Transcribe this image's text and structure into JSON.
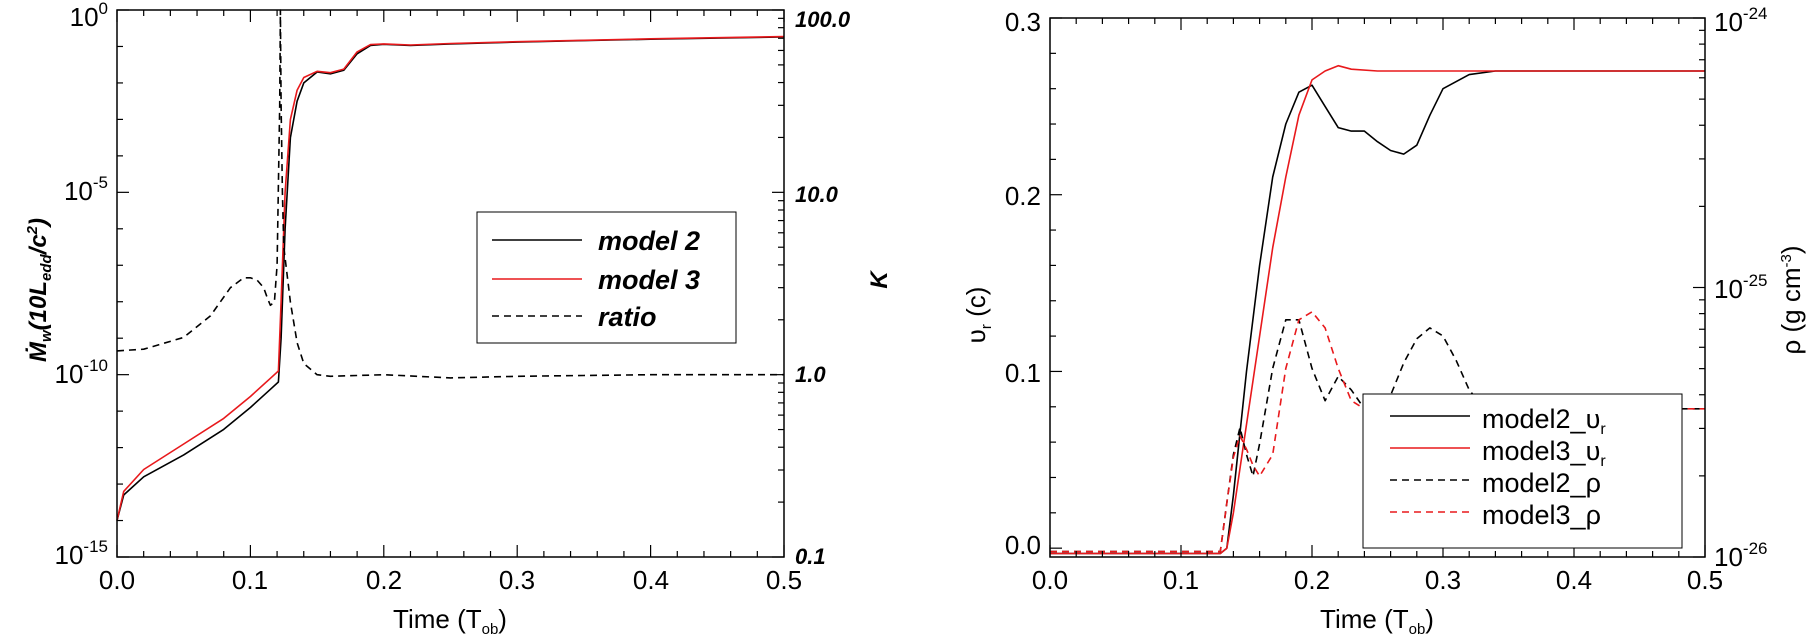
{
  "colors": {
    "black": "#000000",
    "red": "#e8191c",
    "axis": "#000000"
  },
  "chart_data": [
    {
      "type": "line",
      "title": "",
      "xlabel": "Time (T",
      "xlabel_sub": "ob",
      "xlabel_close": ")",
      "ylabel_left": {
        "main": "Ṁ",
        "sub1": "w",
        "mid": "(10L",
        "sub2": "edd",
        "end": "/c",
        "sup": "2",
        "close": ")"
      },
      "ylabel_right": "K",
      "xlim": [
        0,
        0.5
      ],
      "ylim_left_log10": [
        -15,
        0
      ],
      "ylim_right_log10": [
        -1,
        2
      ],
      "y_scale": "log",
      "x_ticks": [
        "0.0",
        "0.1",
        "0.2",
        "0.3",
        "0.4",
        "0.5"
      ],
      "y_ticks_left": [
        {
          "base": "10",
          "exp": "0"
        },
        {
          "base": "10",
          "exp": "-5"
        },
        {
          "base": "10",
          "exp": "-10"
        },
        {
          "base": "10",
          "exp": "-15"
        }
      ],
      "y_ticks_right": [
        "100.0",
        "10.0",
        "1.0",
        "0.1"
      ],
      "legend_position": "center-right",
      "series": [
        {
          "name": "model 2",
          "axis": "left",
          "style": "solid",
          "color": "#000000",
          "x": [
            0.0,
            0.005,
            0.02,
            0.05,
            0.08,
            0.1,
            0.115,
            0.121,
            0.123,
            0.126,
            0.13,
            0.135,
            0.14,
            0.15,
            0.16,
            0.17,
            0.18,
            0.19,
            0.2,
            0.22,
            0.25,
            0.3,
            0.35,
            0.4,
            0.45,
            0.5
          ],
          "log10_y": [
            -14,
            -13.3,
            -12.8,
            -12.2,
            -11.5,
            -10.9,
            -10.4,
            -10.2,
            -9.0,
            -6.0,
            -3.5,
            -2.5,
            -2.0,
            -1.7,
            -1.75,
            -1.65,
            -1.2,
            -0.97,
            -0.94,
            -0.97,
            -0.93,
            -0.88,
            -0.84,
            -0.8,
            -0.77,
            -0.74
          ]
        },
        {
          "name": "model 3",
          "axis": "left",
          "style": "solid",
          "color": "#e8191c",
          "x": [
            0.0,
            0.005,
            0.02,
            0.05,
            0.08,
            0.1,
            0.115,
            0.121,
            0.123,
            0.126,
            0.13,
            0.135,
            0.14,
            0.15,
            0.16,
            0.17,
            0.18,
            0.19,
            0.2,
            0.22,
            0.25,
            0.3,
            0.35,
            0.4,
            0.45,
            0.5
          ],
          "log10_y": [
            -14,
            -13.2,
            -12.6,
            -11.9,
            -11.2,
            -10.6,
            -10.1,
            -9.9,
            -8.0,
            -5.0,
            -3.0,
            -2.2,
            -1.85,
            -1.68,
            -1.72,
            -1.62,
            -1.15,
            -0.95,
            -0.93,
            -0.96,
            -0.92,
            -0.87,
            -0.83,
            -0.79,
            -0.76,
            -0.73
          ]
        },
        {
          "name": "ratio",
          "axis": "right",
          "style": "dashed",
          "color": "#000000",
          "x": [
            0.0,
            0.02,
            0.05,
            0.07,
            0.085,
            0.095,
            0.1,
            0.105,
            0.11,
            0.113,
            0.115,
            0.118,
            0.12,
            0.122,
            0.1225,
            0.123,
            0.124,
            0.125,
            0.13,
            0.135,
            0.14,
            0.15,
            0.16,
            0.2,
            0.25,
            0.3,
            0.35,
            0.4,
            0.45,
            0.5
          ],
          "y": [
            1.35,
            1.38,
            1.6,
            2.1,
            3.0,
            3.4,
            3.4,
            3.3,
            3.0,
            2.6,
            2.4,
            2.5,
            4.0,
            30,
            100,
            30,
            10,
            5,
            2.5,
            1.5,
            1.15,
            1.0,
            0.98,
            1.0,
            0.96,
            0.98,
            0.99,
            1.0,
            1.0,
            1.0
          ]
        }
      ]
    },
    {
      "type": "line",
      "title": "",
      "xlabel": "Time (T",
      "xlabel_sub": "ob",
      "xlabel_close": ")",
      "ylabel_left": {
        "main": "υ",
        "sub": "r",
        "rest": " (c)"
      },
      "ylabel_right": {
        "main": "ρ (g cm",
        "sup": "-3",
        "close": ")"
      },
      "xlim": [
        0,
        0.5
      ],
      "ylim_left": [
        -0.005,
        0.3
      ],
      "ylim_right_log10": [
        -26,
        -24
      ],
      "x_ticks": [
        "0.0",
        "0.1",
        "0.2",
        "0.3",
        "0.4",
        "0.5"
      ],
      "y_ticks_left": [
        "0.0",
        "0.1",
        "0.2",
        "0.3"
      ],
      "y_ticks_right": [
        {
          "base": "10",
          "exp": "-24"
        },
        {
          "base": "10",
          "exp": "-25"
        },
        {
          "base": "10",
          "exp": "-26"
        }
      ],
      "legend_position": "bottom-right",
      "series": [
        {
          "name": "model2_υ",
          "name_sub": "r",
          "axis": "left",
          "style": "solid",
          "color": "#000000",
          "x": [
            0.0,
            0.13,
            0.135,
            0.14,
            0.15,
            0.16,
            0.17,
            0.18,
            0.19,
            0.2,
            0.21,
            0.22,
            0.23,
            0.24,
            0.25,
            0.26,
            0.27,
            0.28,
            0.29,
            0.3,
            0.32,
            0.34,
            0.4,
            0.5
          ],
          "y": [
            -0.003,
            -0.003,
            0.0,
            0.03,
            0.1,
            0.16,
            0.21,
            0.24,
            0.258,
            0.262,
            0.25,
            0.238,
            0.236,
            0.236,
            0.23,
            0.225,
            0.223,
            0.228,
            0.245,
            0.26,
            0.268,
            0.27,
            0.27,
            0.27
          ]
        },
        {
          "name": "model3_υ",
          "name_sub": "r",
          "axis": "left",
          "style": "solid",
          "color": "#e8191c",
          "x": [
            0.0,
            0.13,
            0.135,
            0.14,
            0.15,
            0.16,
            0.17,
            0.18,
            0.19,
            0.2,
            0.21,
            0.22,
            0.23,
            0.25,
            0.3,
            0.4,
            0.5
          ],
          "y": [
            -0.003,
            -0.003,
            0.0,
            0.02,
            0.07,
            0.12,
            0.17,
            0.21,
            0.245,
            0.265,
            0.27,
            0.273,
            0.271,
            0.27,
            0.27,
            0.27,
            0.27
          ]
        },
        {
          "name": "model2_ρ",
          "axis": "right",
          "style": "dashed",
          "color": "#000000",
          "x": [
            0.0,
            0.13,
            0.135,
            0.14,
            0.145,
            0.15,
            0.155,
            0.16,
            0.17,
            0.18,
            0.19,
            0.2,
            0.21,
            0.22,
            0.23,
            0.24,
            0.25,
            0.26,
            0.27,
            0.28,
            0.29,
            0.3,
            0.31,
            0.32,
            0.33,
            0.34,
            0.4,
            0.5
          ],
          "log10_y": [
            -25.98,
            -25.98,
            -25.8,
            -25.62,
            -25.52,
            -25.62,
            -25.7,
            -25.58,
            -25.3,
            -25.12,
            -25.12,
            -25.3,
            -25.42,
            -25.33,
            -25.38,
            -25.45,
            -25.45,
            -25.4,
            -25.28,
            -25.19,
            -25.15,
            -25.18,
            -25.27,
            -25.38,
            -25.44,
            -25.45,
            -25.45,
            -25.45
          ]
        },
        {
          "name": "model3_ρ",
          "axis": "right",
          "style": "dashed",
          "color": "#e8191c",
          "x": [
            0.0,
            0.13,
            0.135,
            0.14,
            0.145,
            0.15,
            0.155,
            0.16,
            0.17,
            0.18,
            0.19,
            0.2,
            0.21,
            0.22,
            0.23,
            0.24,
            0.25,
            0.3,
            0.4,
            0.5
          ],
          "log10_y": [
            -25.98,
            -25.98,
            -25.8,
            -25.63,
            -25.55,
            -25.6,
            -25.66,
            -25.7,
            -25.62,
            -25.3,
            -25.12,
            -25.09,
            -25.15,
            -25.3,
            -25.42,
            -25.45,
            -25.45,
            -25.45,
            -25.45,
            -25.45
          ]
        }
      ]
    }
  ]
}
